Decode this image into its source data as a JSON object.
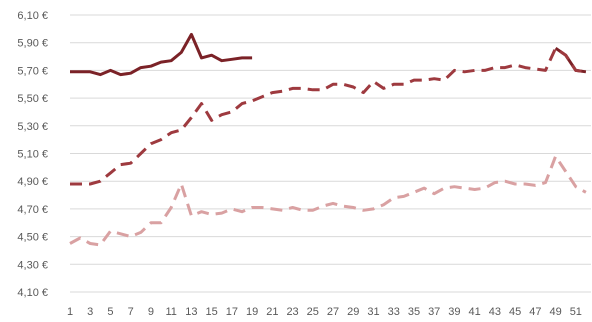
{
  "chart_data": {
    "type": "line",
    "title": "",
    "xlabel": "",
    "ylabel": "",
    "x": [
      1,
      2,
      3,
      4,
      5,
      6,
      7,
      8,
      9,
      10,
      11,
      12,
      13,
      14,
      15,
      16,
      17,
      18,
      19,
      20,
      21,
      22,
      23,
      24,
      25,
      26,
      27,
      28,
      29,
      30,
      31,
      32,
      33,
      34,
      35,
      36,
      37,
      38,
      39,
      40,
      41,
      42,
      43,
      44,
      45,
      46,
      47,
      48,
      49,
      50,
      51,
      52
    ],
    "x_tick_labels": [
      "1",
      "3",
      "5",
      "7",
      "9",
      "11",
      "13",
      "15",
      "17",
      "19",
      "21",
      "23",
      "25",
      "27",
      "29",
      "31",
      "33",
      "35",
      "37",
      "39",
      "41",
      "43",
      "45",
      "47",
      "49",
      "51"
    ],
    "y_tick_labels": [
      "4,10 €",
      "4,30 €",
      "4,50 €",
      "4,70 €",
      "4,90 €",
      "5,10 €",
      "5,30 €",
      "5,50 €",
      "5,70 €",
      "5,90 €",
      "6,10 €"
    ],
    "ylim": [
      4.1,
      6.1
    ],
    "y_step": 0.2,
    "grid": "horizontal",
    "colors": {
      "dark": "#7b2227",
      "medium": "#9e3a3f",
      "light": "#d9a1a2",
      "grid": "#d9d9d9",
      "axis_text": "#595959"
    },
    "series": [
      {
        "style": "solid",
        "color_key": "dark",
        "values": [
          5.69,
          5.69,
          5.69,
          5.67,
          5.7,
          5.67,
          5.68,
          5.72,
          5.73,
          5.76,
          5.77,
          5.83,
          5.96,
          5.79,
          5.81,
          5.77,
          5.78,
          5.79,
          5.79,
          null,
          null,
          null,
          null,
          null,
          null,
          null,
          null,
          null,
          null,
          null,
          null,
          null,
          null,
          null,
          null,
          null,
          null,
          null,
          null,
          null,
          null,
          null,
          null,
          null,
          null,
          null,
          null,
          null,
          5.86,
          5.81,
          5.7,
          5.69
        ]
      },
      {
        "style": "dashed",
        "color_key": "medium",
        "values": [
          4.88,
          4.88,
          4.88,
          4.9,
          4.96,
          5.02,
          5.03,
          5.1,
          5.17,
          5.2,
          5.25,
          5.27,
          5.36,
          5.46,
          5.34,
          5.38,
          5.4,
          5.46,
          5.48,
          5.51,
          5.54,
          5.55,
          5.57,
          5.57,
          5.56,
          5.56,
          5.6,
          5.6,
          5.58,
          5.54,
          5.62,
          5.57,
          5.6,
          5.6,
          5.63,
          5.63,
          5.64,
          5.63,
          5.7,
          5.69,
          5.7,
          5.7,
          5.72,
          5.72,
          5.74,
          5.72,
          5.71,
          5.7,
          5.86,
          5.81,
          5.7,
          5.69
        ]
      },
      {
        "style": "dashed",
        "color_key": "light",
        "values": [
          4.45,
          4.49,
          4.45,
          4.44,
          4.54,
          4.52,
          4.5,
          4.53,
          4.6,
          4.6,
          4.71,
          4.88,
          4.65,
          4.68,
          4.66,
          4.67,
          4.7,
          4.68,
          4.71,
          4.71,
          4.7,
          4.69,
          4.71,
          4.69,
          4.69,
          4.72,
          4.74,
          4.72,
          4.71,
          4.69,
          4.7,
          4.73,
          4.78,
          4.79,
          4.82,
          4.85,
          4.81,
          4.85,
          4.86,
          4.85,
          4.84,
          4.85,
          4.89,
          4.9,
          4.88,
          4.88,
          4.87,
          4.89,
          5.08,
          4.97,
          4.86,
          4.82
        ]
      }
    ]
  }
}
